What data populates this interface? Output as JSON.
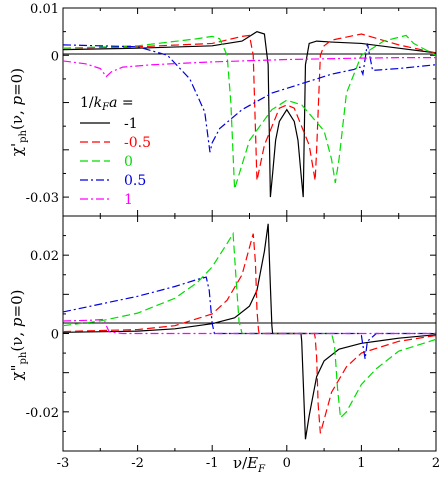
{
  "chart_data": [
    {
      "type": "line",
      "panel": "top",
      "ylabel": "χ'ph(ν, p=0)",
      "ylabel_parts": [
        "χ",
        "'",
        "ph",
        "(ν, ",
        "p",
        "=0)"
      ],
      "xlim": [
        -3,
        2
      ],
      "ylim": [
        -0.034,
        0.01
      ],
      "yticks": [
        {
          "value": 0.01,
          "label": "0.01"
        },
        {
          "value": 0,
          "label": "0"
        },
        {
          "value": -0.03,
          "label": "-0.03"
        }
      ],
      "legend": {
        "title_parts": [
          "1/",
          "k",
          "F",
          "a",
          " ="
        ],
        "placement": "left"
      },
      "series": [
        {
          "name": "-1",
          "color": "#000000",
          "dash": "solid",
          "x": [
            -3,
            -2,
            -1,
            -0.6,
            -0.4,
            -0.3,
            -0.25,
            -0.22,
            -0.19,
            -0.15,
            -0.1,
            0,
            0.1,
            0.15,
            0.19,
            0.22,
            0.25,
            0.3,
            0.4,
            0.6,
            1,
            1.5,
            2
          ],
          "y": [
            0.0012,
            0.0015,
            0.002,
            0.003,
            0.005,
            0.0045,
            -0.002,
            -0.03,
            -0.025,
            -0.018,
            -0.014,
            -0.0115,
            -0.014,
            -0.018,
            -0.025,
            -0.03,
            -0.002,
            0.0025,
            0.003,
            0.0028,
            0.0025,
            0.0015,
            0.0005
          ]
        },
        {
          "name": "-0.5",
          "color": "#ff0000",
          "dash": "8,4",
          "x": [
            -3,
            -2,
            -1,
            -0.6,
            -0.5,
            -0.45,
            -0.4,
            -0.3,
            -0.1,
            0,
            0.1,
            0.3,
            0.38,
            0.4,
            0.45,
            0.5,
            0.6,
            1,
            1.5,
            2
          ],
          "y": [
            0.0015,
            0.0018,
            0.0025,
            0.004,
            0.0042,
            0.0,
            -0.0265,
            -0.019,
            -0.0112,
            -0.0105,
            -0.0112,
            -0.019,
            -0.0265,
            -0.02,
            0.0,
            0.002,
            0.0032,
            0.0045,
            0.0022,
            0.0005
          ]
        },
        {
          "name": "0",
          "color": "#00dd00",
          "dash": "8,4",
          "x": [
            -3,
            -2,
            -1.2,
            -1,
            -0.9,
            -0.8,
            -0.75,
            -0.7,
            -0.5,
            -0.2,
            0,
            0.2,
            0.5,
            0.6,
            0.65,
            0.7,
            0.8,
            1,
            1.3,
            1.6,
            1.7,
            2
          ],
          "y": [
            0.0015,
            0.002,
            0.0035,
            0.004,
            0.0035,
            0.0,
            -0.01,
            -0.0283,
            -0.018,
            -0.0115,
            -0.0095,
            -0.0105,
            -0.016,
            -0.022,
            -0.027,
            -0.022,
            -0.008,
            0.0,
            0.003,
            0.0042,
            0.0025,
            0.0
          ]
        },
        {
          "name": "0.5",
          "color": "#0000dd",
          "dash": "8,3,2,3",
          "x": [
            -3,
            -2,
            -1.6,
            -1.3,
            -1.1,
            -1.03,
            -1.0,
            -0.9,
            -0.6,
            -0.2,
            0.2,
            0.6,
            0.9,
            0.98,
            1.02,
            1.08,
            1.15,
            1.5,
            2
          ],
          "y": [
            0.0022,
            0.0018,
            0.0,
            -0.005,
            -0.012,
            -0.0205,
            -0.0185,
            -0.0155,
            -0.0115,
            -0.008,
            -0.006,
            -0.004,
            -0.003,
            -0.0025,
            -0.004,
            0.0025,
            -0.0032,
            -0.0028,
            -0.002
          ]
        },
        {
          "name": "1",
          "color": "#ff00ff",
          "dash": "8,3,2,3",
          "x": [
            -3,
            -2.7,
            -2.5,
            -2.42,
            -2.35,
            -2.2,
            -1.8,
            -1,
            0,
            1,
            1.5,
            2
          ],
          "y": [
            -0.0012,
            -0.0018,
            -0.0028,
            -0.0045,
            -0.0035,
            -0.0025,
            -0.002,
            -0.0014,
            -0.0009,
            -0.0006,
            -0.0005,
            -0.0005
          ]
        }
      ]
    },
    {
      "type": "line",
      "panel": "bottom",
      "ylabel": "χ\"ph(ν, p=0)",
      "ylabel_parts": [
        "χ",
        "\"",
        "ph",
        "(ν, ",
        "p",
        "=0)"
      ],
      "xlabel_parts": [
        "ν/",
        "E",
        "F"
      ],
      "xlim": [
        -3,
        2
      ],
      "ylim": [
        -0.03,
        0.03
      ],
      "xticks": [
        {
          "value": -3,
          "label": "-3"
        },
        {
          "value": -2,
          "label": "-2"
        },
        {
          "value": -1,
          "label": "-1"
        },
        {
          "value": 0,
          "label": "0"
        },
        {
          "value": 1,
          "label": "1"
        },
        {
          "value": 2,
          "label": "2"
        }
      ],
      "yticks": [
        {
          "value": 0.02,
          "label": "0.02"
        },
        {
          "value": 0,
          "label": "0"
        },
        {
          "value": -0.02,
          "label": "-0.02"
        }
      ],
      "series": [
        {
          "name": "-1",
          "color": "#000000",
          "dash": "solid",
          "x": [
            -3,
            -2,
            -1.5,
            -1,
            -0.7,
            -0.5,
            -0.4,
            -0.3,
            -0.25,
            -0.22,
            -0.2,
            -0.19,
            0.19,
            0.2,
            0.22,
            0.25,
            0.3,
            0.4,
            0.5,
            0.7,
            1,
            1.5,
            2
          ],
          "y": [
            0.0003,
            0.0006,
            0.0012,
            0.0025,
            0.004,
            0.007,
            0.011,
            0.021,
            0.028,
            0.012,
            0.002,
            0.0,
            0.0,
            -0.002,
            -0.012,
            -0.027,
            -0.021,
            -0.011,
            -0.007,
            -0.004,
            -0.0025,
            -0.0012,
            -0.0003
          ]
        },
        {
          "name": "-0.5",
          "color": "#ff0000",
          "dash": "8,4",
          "x": [
            -3,
            -2,
            -1.5,
            -1,
            -0.8,
            -0.6,
            -0.5,
            -0.45,
            -0.42,
            -0.4,
            -0.38,
            -0.37,
            0.37,
            0.38,
            0.4,
            0.42,
            0.45,
            0.5,
            0.6,
            0.8,
            1,
            1.5,
            2
          ],
          "y": [
            0.0005,
            0.001,
            0.002,
            0.005,
            0.0085,
            0.015,
            0.022,
            0.0255,
            0.018,
            0.006,
            0.001,
            0.0,
            0.0,
            -0.001,
            -0.006,
            -0.018,
            -0.0255,
            -0.022,
            -0.015,
            -0.0085,
            -0.005,
            -0.002,
            -0.0005
          ]
        },
        {
          "name": "0",
          "color": "#00dd00",
          "dash": "8,4",
          "x": [
            -3,
            -2.5,
            -2,
            -1.5,
            -1.2,
            -1,
            -0.8,
            -0.72,
            -0.68,
            -0.64,
            -0.6,
            0.6,
            0.64,
            0.68,
            0.72,
            0.8,
            1,
            1.2,
            1.5,
            2
          ],
          "y": [
            0.002,
            0.0032,
            0.0052,
            0.009,
            0.013,
            0.017,
            0.023,
            0.0255,
            0.014,
            0.003,
            0.0,
            0.0,
            -0.003,
            -0.014,
            -0.0215,
            -0.02,
            -0.013,
            -0.009,
            -0.0045,
            -0.0015
          ]
        },
        {
          "name": "0.5",
          "color": "#0000dd",
          "dash": "8,3,2,3",
          "x": [
            -3,
            -2.5,
            -2,
            -1.5,
            -1.2,
            -1.08,
            -1.04,
            -1.0,
            -0.97,
            0.97,
            1.0,
            1.02,
            1.05,
            1.08,
            1.2,
            2
          ],
          "y": [
            0.0055,
            0.0075,
            0.0095,
            0.012,
            0.0138,
            0.0144,
            0.011,
            0.0025,
            0.0,
            0.0,
            -0.0005,
            -0.003,
            -0.0065,
            -0.002,
            0.0,
            0.0
          ]
        },
        {
          "name": "1",
          "color": "#ff00ff",
          "dash": "8,3,2,3",
          "x": [
            -3,
            -2.6,
            -2.45,
            -2.42,
            -2.38,
            -2.2,
            -1.8,
            2
          ],
          "y": [
            0.0032,
            0.0034,
            0.0036,
            0.002,
            0.0004,
            0.0,
            0.0,
            0.0
          ]
        }
      ]
    }
  ]
}
